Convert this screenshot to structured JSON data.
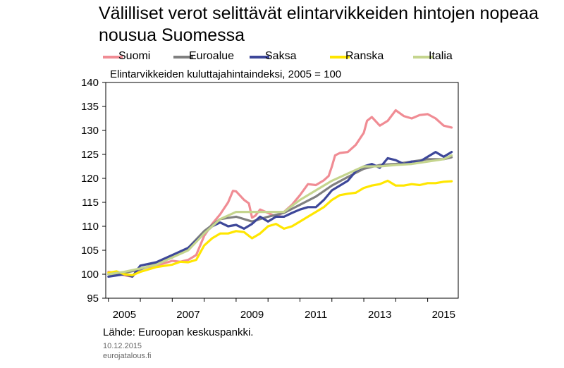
{
  "title": "Välilliset verot selittävät elintarvikkeiden hintojen nopeaa nousua Suomessa",
  "subtitle": "Elintarvikkeiden kuluttajahintaindeksi, 2005 = 100",
  "source": "Lähde: Euroopan keskuspankki.",
  "date": "10.12.2015",
  "site": "eurojatalous.fi",
  "chart_data": {
    "type": "line",
    "ylim": [
      95,
      140
    ],
    "yticks": [
      95,
      100,
      105,
      110,
      115,
      120,
      125,
      130,
      135,
      140
    ],
    "xlim": [
      2004.917,
      2015.958
    ],
    "xticks": [
      "2005",
      "2007",
      "2009",
      "2011",
      "2013",
      "2015"
    ],
    "grid": false,
    "legend_position": "top",
    "series": [
      {
        "name": "Suomi",
        "color": "#f08c94",
        "x": [
          2005.0,
          2005.25,
          2005.5,
          2005.75,
          2006.0,
          2006.5,
          2007.0,
          2007.25,
          2007.5,
          2007.75,
          2008.0,
          2008.25,
          2008.5,
          2008.75,
          2008.9,
          2009.0,
          2009.25,
          2009.4,
          2009.5,
          2009.6,
          2009.75,
          2010.0,
          2010.25,
          2010.5,
          2010.75,
          2011.0,
          2011.25,
          2011.5,
          2011.75,
          2011.9,
          2012.0,
          2012.1,
          2012.25,
          2012.5,
          2012.75,
          2013.0,
          2013.1,
          2013.25,
          2013.5,
          2013.75,
          2014.0,
          2014.25,
          2014.5,
          2014.75,
          2015.0,
          2015.25,
          2015.5,
          2015.75
        ],
        "y": [
          100.5,
          100.2,
          99.8,
          99.5,
          101.2,
          101.8,
          102.8,
          102.6,
          103.0,
          104.0,
          108.0,
          110.5,
          112.5,
          115.0,
          117.4,
          117.3,
          115.5,
          114.8,
          111.8,
          112.2,
          113.5,
          112.8,
          112.0,
          113.0,
          114.5,
          116.5,
          118.8,
          118.6,
          119.6,
          120.5,
          122.5,
          124.8,
          125.3,
          125.5,
          127.0,
          129.5,
          132.0,
          132.8,
          131.0,
          132.0,
          134.2,
          133.0,
          132.5,
          133.2,
          133.4,
          132.5,
          131.0,
          130.6
        ]
      },
      {
        "name": "Euroalue",
        "color": "#808080",
        "x": [
          2005.0,
          2005.5,
          2006.0,
          2006.5,
          2007.0,
          2007.5,
          2008.0,
          2008.5,
          2009.0,
          2009.5,
          2010.0,
          2010.5,
          2011.0,
          2011.5,
          2012.0,
          2012.5,
          2013.0,
          2013.5,
          2014.0,
          2014.5,
          2015.0,
          2015.5,
          2015.75
        ],
        "y": [
          100.0,
          100.3,
          101.0,
          102.3,
          103.5,
          105.5,
          109.0,
          111.5,
          112.0,
          111.0,
          112.0,
          112.8,
          114.5,
          116.2,
          118.5,
          120.3,
          122.0,
          122.8,
          123.0,
          123.5,
          124.0,
          124.0,
          124.4
        ]
      },
      {
        "name": "Saksa",
        "color": "#3d4799",
        "x": [
          2005.0,
          2005.5,
          2005.75,
          2006.0,
          2006.5,
          2007.0,
          2007.5,
          2008.0,
          2008.25,
          2008.5,
          2008.75,
          2009.0,
          2009.25,
          2009.5,
          2009.75,
          2010.0,
          2010.25,
          2010.5,
          2010.75,
          2011.0,
          2011.25,
          2011.5,
          2011.75,
          2012.0,
          2012.25,
          2012.5,
          2012.75,
          2013.0,
          2013.25,
          2013.5,
          2013.75,
          2014.0,
          2014.25,
          2014.5,
          2014.75,
          2015.0,
          2015.25,
          2015.5,
          2015.75
        ],
        "y": [
          99.5,
          100.0,
          99.5,
          101.8,
          102.5,
          104.0,
          105.5,
          108.5,
          110.0,
          110.8,
          110.0,
          110.3,
          109.5,
          110.5,
          112.0,
          111.0,
          112.0,
          112.0,
          112.8,
          113.5,
          114.0,
          114.0,
          115.5,
          117.5,
          118.5,
          119.5,
          121.5,
          122.5,
          123.0,
          122.2,
          124.2,
          123.8,
          123.0,
          123.5,
          123.5,
          124.5,
          125.5,
          124.5,
          125.5
        ]
      },
      {
        "name": "Ranska",
        "color": "#ffe600",
        "x": [
          2005.0,
          2005.25,
          2005.5,
          2005.75,
          2006.0,
          2006.5,
          2007.0,
          2007.25,
          2007.5,
          2007.75,
          2008.0,
          2008.25,
          2008.5,
          2008.75,
          2009.0,
          2009.25,
          2009.5,
          2009.75,
          2010.0,
          2010.25,
          2010.5,
          2010.75,
          2011.0,
          2011.25,
          2011.5,
          2011.75,
          2012.0,
          2012.25,
          2012.5,
          2012.75,
          2013.0,
          2013.25,
          2013.5,
          2013.75,
          2014.0,
          2014.25,
          2014.5,
          2014.75,
          2015.0,
          2015.25,
          2015.5,
          2015.75
        ],
        "y": [
          100.3,
          100.6,
          100.0,
          99.8,
          100.5,
          101.5,
          102.0,
          102.6,
          102.5,
          103.0,
          106.0,
          107.5,
          108.5,
          108.5,
          109.0,
          108.8,
          107.5,
          108.5,
          110.0,
          110.5,
          109.5,
          110.0,
          111.0,
          112.0,
          113.0,
          114.0,
          115.5,
          116.5,
          116.8,
          117.0,
          118.0,
          118.5,
          118.8,
          119.5,
          118.5,
          118.5,
          118.8,
          118.6,
          119.0,
          119.0,
          119.3,
          119.4
        ]
      },
      {
        "name": "Italia",
        "color": "#c5d58e",
        "x": [
          2005.0,
          2005.5,
          2006.0,
          2006.5,
          2007.0,
          2007.5,
          2008.0,
          2008.5,
          2009.0,
          2009.5,
          2010.0,
          2010.5,
          2011.0,
          2011.5,
          2012.0,
          2012.5,
          2013.0,
          2013.5,
          2014.0,
          2014.5,
          2015.0,
          2015.5,
          2015.75
        ],
        "y": [
          100.0,
          100.5,
          101.2,
          102.0,
          103.5,
          105.0,
          108.5,
          111.5,
          113.0,
          113.0,
          113.0,
          113.0,
          115.5,
          117.5,
          119.5,
          121.0,
          122.5,
          122.5,
          122.8,
          123.0,
          123.5,
          124.0,
          124.8
        ]
      }
    ]
  }
}
